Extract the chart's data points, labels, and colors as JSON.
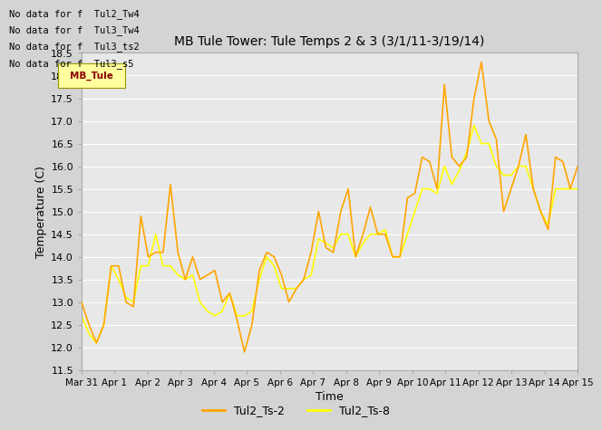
{
  "title": "MB Tule Tower: Tule Temps 2 & 3 (3/1/11-3/19/14)",
  "xlabel": "Time",
  "ylabel": "Temperature (C)",
  "ylim": [
    11.5,
    18.5
  ],
  "legend_labels": [
    "Tul2_Ts-2",
    "Tul2_Ts-8"
  ],
  "legend_colors": [
    "#FFA500",
    "#FFFF00"
  ],
  "no_data_texts": [
    "No data for f  Tul2_Tw4",
    "No data for f  Tul3_Tw4",
    "No data for f  Tul3_ts2",
    "No data for f  Tul3_s5"
  ],
  "x_tick_labels": [
    "Mar 31",
    "Apr 1",
    "Apr 2",
    "Apr 3",
    "Apr 4",
    "Apr 5",
    "Apr 6",
    "Apr 7",
    "Apr 8",
    "Apr 9",
    "Apr 10",
    "Apr 11",
    "Apr 12",
    "Apr 13",
    "Apr 14",
    "Apr 15"
  ],
  "ts2": [
    13.0,
    12.5,
    12.1,
    12.5,
    13.8,
    13.8,
    13.0,
    12.9,
    14.9,
    14.0,
    14.1,
    14.1,
    15.6,
    14.1,
    13.5,
    14.0,
    13.5,
    13.6,
    13.7,
    13.0,
    13.2,
    12.6,
    11.9,
    12.5,
    13.7,
    14.1,
    14.0,
    13.6,
    13.0,
    13.3,
    13.5,
    14.1,
    15.0,
    14.2,
    14.1,
    15.0,
    15.5,
    14.0,
    14.5,
    15.1,
    14.5,
    14.5,
    14.0,
    14.0,
    15.3,
    15.4,
    16.2,
    16.1,
    15.5,
    17.8,
    16.2,
    16.0,
    16.2,
    17.5,
    18.3,
    17.0,
    16.6,
    15.0,
    15.5,
    16.0,
    16.7,
    15.5,
    15.0,
    14.6,
    16.2,
    16.1,
    15.5,
    16.0
  ],
  "ts8": [
    12.7,
    12.3,
    12.1,
    12.5,
    13.8,
    13.5,
    13.1,
    13.0,
    13.8,
    13.8,
    14.5,
    13.8,
    13.8,
    13.6,
    13.5,
    13.6,
    13.0,
    12.8,
    12.7,
    12.8,
    13.2,
    12.7,
    12.7,
    12.8,
    13.5,
    14.0,
    13.8,
    13.3,
    13.3,
    13.3,
    13.5,
    13.6,
    14.4,
    14.3,
    14.2,
    14.5,
    14.5,
    14.0,
    14.3,
    14.5,
    14.5,
    14.6,
    14.0,
    14.0,
    14.5,
    15.0,
    15.5,
    15.5,
    15.4,
    16.0,
    15.6,
    15.9,
    16.3,
    16.9,
    16.5,
    16.5,
    16.0,
    15.8,
    15.8,
    16.0,
    16.0,
    15.5,
    15.0,
    14.7,
    15.5,
    15.5,
    15.5,
    15.5
  ]
}
